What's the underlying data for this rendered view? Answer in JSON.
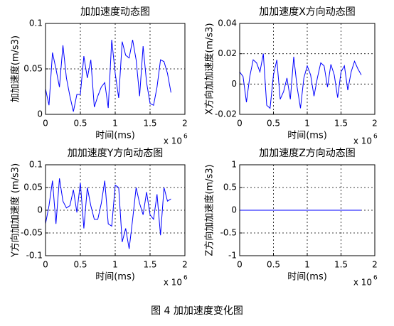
{
  "chart_data": [
    {
      "type": "line",
      "title": "加加速度动态图",
      "xlabel": "时间(ms)",
      "ylabel": "加加速度(m/s3)",
      "x_scale": {
        "base": "x 10",
        "exponent": "6"
      },
      "x": [
        0,
        0.05,
        0.1,
        0.15,
        0.2,
        0.25,
        0.3,
        0.35,
        0.4,
        0.45,
        0.5,
        0.55,
        0.6,
        0.65,
        0.7,
        0.75,
        0.8,
        0.85,
        0.9,
        0.95,
        1,
        1.05,
        1.1,
        1.15,
        1.2,
        1.25,
        1.3,
        1.35,
        1.4,
        1.45,
        1.5,
        1.55,
        1.6,
        1.65,
        1.7,
        1.75,
        1.8
      ],
      "values": [
        0.028,
        0.01,
        0.068,
        0.05,
        0.03,
        0.076,
        0.04,
        0.02,
        0.003,
        0.022,
        0.022,
        0.064,
        0.04,
        0.06,
        0.008,
        0.02,
        0.03,
        0.035,
        0.007,
        0.082,
        0.045,
        0.018,
        0.08,
        0.065,
        0.062,
        0.082,
        0.06,
        0.02,
        0.075,
        0.035,
        0.012,
        0.01,
        0.03,
        0.06,
        0.058,
        0.045,
        0.024
      ],
      "color": "#0000ff",
      "xlim": [
        0,
        2
      ],
      "xticks": [
        0,
        0.5,
        1,
        1.5,
        2
      ],
      "ylim": [
        0,
        0.1
      ],
      "yticks": [
        0,
        0.05,
        0.1
      ],
      "grid": true
    },
    {
      "type": "line",
      "title": "加加速度X方向动态图",
      "xlabel": "时间(ms)",
      "ylabel": "X方向加加速度(m/s3)",
      "x_scale": {
        "base": "x 10",
        "exponent": "6"
      },
      "x": [
        0,
        0.05,
        0.1,
        0.15,
        0.2,
        0.25,
        0.3,
        0.35,
        0.4,
        0.45,
        0.5,
        0.55,
        0.6,
        0.65,
        0.7,
        0.75,
        0.8,
        0.85,
        0.9,
        0.95,
        1,
        1.05,
        1.1,
        1.15,
        1.2,
        1.25,
        1.3,
        1.35,
        1.4,
        1.45,
        1.5,
        1.55,
        1.6,
        1.65,
        1.7,
        1.75,
        1.8
      ],
      "values": [
        0.008,
        0.005,
        -0.012,
        0.005,
        0.016,
        0.014,
        0.008,
        0.02,
        -0.014,
        -0.016,
        0.006,
        0.016,
        -0.01,
        -0.005,
        0.004,
        -0.01,
        0.018,
        -0.002,
        -0.016,
        0.004,
        0.012,
        0.006,
        -0.008,
        0.004,
        0.014,
        0.012,
        -0.002,
        0.013,
        0.006,
        -0.009,
        0.008,
        0.012,
        -0.004,
        0.008,
        0.015,
        0.01,
        0.006
      ],
      "color": "#0000ff",
      "xlim": [
        0,
        2
      ],
      "xticks": [
        0,
        0.5,
        1,
        1.5,
        2
      ],
      "ylim": [
        -0.02,
        0.04
      ],
      "yticks": [
        -0.02,
        0,
        0.02,
        0.04
      ],
      "grid": true
    },
    {
      "type": "line",
      "title": "加加速度Y方向动态图",
      "xlabel": "时间(ms)",
      "ylabel": "Y方向加加速度 (m/s3)",
      "x_scale": {
        "base": "x 10",
        "exponent": "6"
      },
      "x": [
        0,
        0.05,
        0.1,
        0.15,
        0.2,
        0.25,
        0.3,
        0.35,
        0.4,
        0.45,
        0.5,
        0.55,
        0.6,
        0.65,
        0.7,
        0.75,
        0.8,
        0.85,
        0.9,
        0.95,
        1,
        1.05,
        1.1,
        1.15,
        1.2,
        1.25,
        1.3,
        1.35,
        1.4,
        1.45,
        1.5,
        1.55,
        1.6,
        1.65,
        1.7,
        1.75,
        1.8
      ],
      "values": [
        -0.03,
        0.01,
        0.065,
        -0.03,
        0.07,
        0.02,
        0.005,
        0.01,
        0.045,
        -0.005,
        0.06,
        -0.04,
        0.05,
        0.01,
        -0.02,
        -0.02,
        0.015,
        0.065,
        -0.03,
        -0.035,
        0.055,
        0.05,
        -0.07,
        -0.04,
        -0.085,
        -0.02,
        0.05,
        0.015,
        -0.01,
        0.04,
        -0.01,
        -0.02,
        0.035,
        -0.055,
        0.05,
        0.02,
        0.025
      ],
      "color": "#0000ff",
      "xlim": [
        0,
        2
      ],
      "xticks": [
        0,
        0.5,
        1,
        1.5,
        2
      ],
      "ylim": [
        -0.1,
        0.1
      ],
      "yticks": [
        -0.1,
        -0.05,
        0,
        0.05,
        0.1
      ],
      "grid": true
    },
    {
      "type": "line",
      "title": "加加速度Z方向动态图",
      "xlabel": "时间(ms)",
      "ylabel": "Z方向加加速度(m/s3)",
      "x_scale": {
        "base": "x 10",
        "exponent": "6"
      },
      "x": [
        0,
        0.05,
        0.1,
        0.15,
        0.2,
        0.25,
        0.3,
        0.35,
        0.4,
        0.45,
        0.5,
        0.55,
        0.6,
        0.65,
        0.7,
        0.75,
        0.8,
        0.85,
        0.9,
        0.95,
        1,
        1.05,
        1.1,
        1.15,
        1.2,
        1.25,
        1.3,
        1.35,
        1.4,
        1.45,
        1.5,
        1.55,
        1.6,
        1.65,
        1.7,
        1.75,
        1.8
      ],
      "values": [
        0,
        0,
        0,
        0,
        0,
        0,
        0,
        0,
        0,
        0,
        0,
        0,
        0,
        0,
        0,
        0,
        0,
        0,
        0,
        0,
        0,
        0,
        0,
        0,
        0,
        0,
        0,
        0,
        0,
        0,
        0,
        0,
        0,
        0,
        0,
        0,
        0
      ],
      "color": "#0000ff",
      "xlim": [
        0,
        2
      ],
      "xticks": [
        0,
        0.5,
        1,
        1.5,
        2
      ],
      "ylim": [
        -1,
        1
      ],
      "yticks": [
        -1,
        -0.5,
        0,
        0.5,
        1
      ],
      "grid": true
    }
  ],
  "caption": "图 4  加加速度变化图"
}
